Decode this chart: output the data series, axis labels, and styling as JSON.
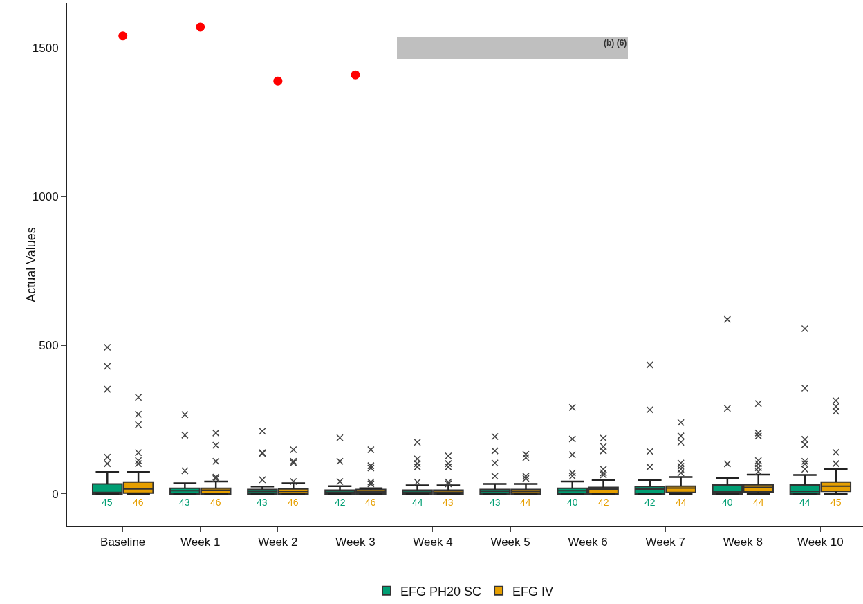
{
  "chart_data": {
    "type": "box",
    "ylabel": "Actual Values",
    "categories": [
      "Baseline",
      "Week 1",
      "Week 2",
      "Week 3",
      "Week 4",
      "Week 5",
      "Week 6",
      "Week 7",
      "Week 8",
      "Week 10"
    ],
    "ylim": [
      -107,
      1649
    ],
    "yticks": [
      0,
      500,
      1000,
      1500
    ],
    "grid": false,
    "legend": "bottom",
    "marker": "cross",
    "annotations": [
      "(b) (6)"
    ],
    "series": [
      {
        "name": "EFG PH20 SC",
        "color": "#009e73",
        "value_labels": [
          "45",
          "43",
          "43",
          "42",
          "44",
          "43",
          "40",
          "42",
          "40",
          "44"
        ],
        "boxes": [
          {
            "low": 0,
            "q1": 0,
            "median": 5,
            "q3": 34,
            "high": 74,
            "outliers": [
              493,
              429,
              352,
              124,
              102
            ]
          },
          {
            "low": 0,
            "q1": 0,
            "median": 11,
            "q3": 19,
            "high": 36,
            "outliers": [
              267,
              198,
              78
            ]
          },
          {
            "low": 0,
            "q1": 0,
            "median": 8,
            "q3": 15,
            "high": 25,
            "outliers": [
              211,
              139,
              136,
              48
            ]
          },
          {
            "low": 0,
            "q1": 0,
            "median": 6,
            "q3": 13,
            "high": 26,
            "outliers": [
              189,
              110,
              42
            ]
          },
          {
            "low": 0,
            "q1": 0,
            "median": 6,
            "q3": 13,
            "high": 29,
            "outliers": [
              174,
              118,
              102,
              91,
              40
            ]
          },
          {
            "low": 0,
            "q1": 0,
            "median": 9,
            "q3": 15,
            "high": 34,
            "outliers": [
              193,
              145,
              104,
              60
            ]
          },
          {
            "low": 0,
            "q1": 0,
            "median": 11,
            "q3": 19,
            "high": 42,
            "outliers": [
              291,
              185,
              132,
              71,
              60
            ]
          },
          {
            "low": 0,
            "q1": 0,
            "median": 16,
            "q3": 25,
            "high": 47,
            "outliers": [
              434,
              283,
              143,
              91
            ]
          },
          {
            "low": 0,
            "q1": 0,
            "median": 7,
            "q3": 30,
            "high": 54,
            "outliers": [
              587,
              288,
              101
            ]
          },
          {
            "low": 0,
            "q1": 0,
            "median": 9,
            "q3": 30,
            "high": 64,
            "outliers": [
              556,
              356,
              184,
              166,
              110,
              101,
              83
            ]
          }
        ]
      },
      {
        "name": "EFG IV",
        "color": "#e69f00",
        "value_labels": [
          "46",
          "46",
          "46",
          "46",
          "43",
          "44",
          "42",
          "44",
          "44",
          "45"
        ],
        "boxes": [
          {
            "low": 0,
            "q1": 3,
            "median": 17,
            "q3": 40,
            "high": 74,
            "outliers": [
              325,
              268,
              233,
              139,
              112,
              102
            ]
          },
          {
            "low": 0,
            "q1": 0,
            "median": 13,
            "q3": 19,
            "high": 42,
            "outliers": [
              205,
              164,
              110,
              57,
              52
            ]
          },
          {
            "low": 0,
            "q1": 0,
            "median": 9,
            "q3": 17,
            "high": 36,
            "outliers": [
              149,
              110,
              105,
              42
            ]
          },
          {
            "low": 0,
            "q1": 0,
            "median": 7,
            "q3": 15,
            "high": 19,
            "outliers": [
              149,
              95,
              87,
              40,
              34
            ]
          },
          {
            "low": 0,
            "q1": 0,
            "median": 6,
            "q3": 13,
            "high": 29,
            "outliers": [
              128,
              102,
              91,
              40,
              34
            ]
          },
          {
            "low": 0,
            "q1": 0,
            "median": 8,
            "q3": 15,
            "high": 34,
            "outliers": [
              133,
              122,
              60,
              52
            ]
          },
          {
            "low": 0,
            "q1": 0,
            "median": 16,
            "q3": 22,
            "high": 47,
            "outliers": [
              188,
              160,
              145,
              83,
              71,
              64
            ]
          },
          {
            "low": 0,
            "q1": 5,
            "median": 20,
            "q3": 26,
            "high": 57,
            "outliers": [
              240,
              195,
              174,
              104,
              93,
              83,
              71
            ]
          },
          {
            "low": 0,
            "q1": 7,
            "median": 22,
            "q3": 31,
            "high": 65,
            "outliers": [
              304,
              205,
              195,
              112,
              101,
              88,
              75
            ]
          },
          {
            "low": 0,
            "q1": 9,
            "median": 26,
            "q3": 40,
            "high": 83,
            "outliers": [
              314,
              294,
              278,
              140,
              102
            ]
          }
        ]
      },
      {
        "type": "scatter",
        "color": "#ff0000",
        "marker": "circle",
        "x": [
          "Baseline",
          "Week 1",
          "Week 2",
          "Week 3"
        ],
        "values": [
          1540,
          1570,
          1388,
          1409
        ]
      }
    ]
  }
}
